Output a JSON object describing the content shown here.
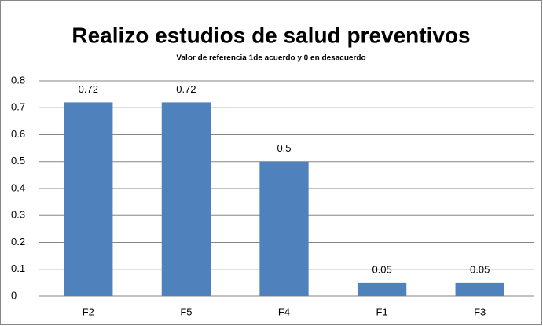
{
  "chart_data": {
    "type": "bar",
    "title": "Realizo estudios de salud preventivos",
    "subtitle": "Valor de referencia 1de acuerdo y 0 en desacuerdo",
    "categories": [
      "F2",
      "F5",
      "F4",
      "F1",
      "F3"
    ],
    "values": [
      0.72,
      0.72,
      0.5,
      0.05,
      0.05
    ],
    "color": "#4f81bd",
    "ylim": [
      0,
      0.8
    ],
    "yticks": [
      0,
      0.1,
      0.2,
      0.3,
      0.4,
      0.5,
      0.6,
      0.7,
      0.8
    ],
    "grid": true
  }
}
